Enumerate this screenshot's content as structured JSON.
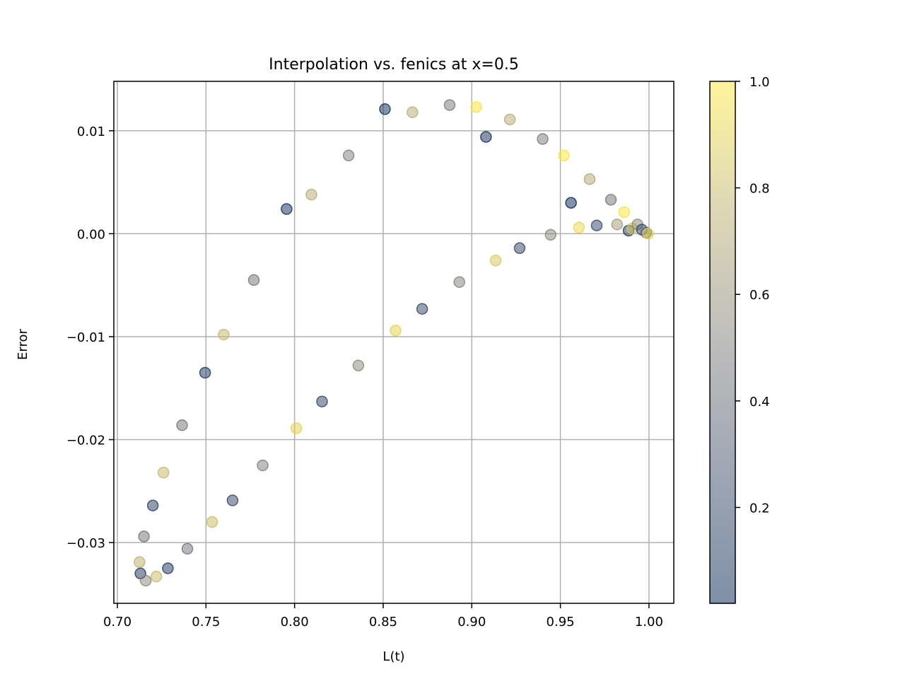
{
  "chart_data": {
    "type": "scatter",
    "title": "Interpolation vs. fenics at x=0.5",
    "xlabel": "L(t)",
    "ylabel": "Error",
    "xlim": [
      0.698,
      1.014
    ],
    "ylim": [
      -0.0359,
      0.0148
    ],
    "xticks": [
      0.7,
      0.75,
      0.8,
      0.85,
      0.9,
      0.95,
      1.0
    ],
    "xtick_labels": [
      "0.70",
      "0.75",
      "0.80",
      "0.85",
      "0.90",
      "0.95",
      "1.00"
    ],
    "yticks": [
      -0.03,
      -0.02,
      -0.01,
      0.0,
      0.01
    ],
    "ytick_labels": [
      "−0.03",
      "−0.02",
      "−0.01",
      "0.00",
      "0.01"
    ],
    "grid": true,
    "colormap": "cividis",
    "marker_alpha": 0.5,
    "colorbar": {
      "range": [
        0.02,
        1.0
      ],
      "ticks": [
        0.2,
        0.4,
        0.6,
        0.8,
        1.0
      ],
      "tick_labels": [
        "0.2",
        "0.4",
        "0.6",
        "0.8",
        "1.0"
      ]
    },
    "points": [
      {
        "x": 0.713,
        "y": -0.033,
        "c": 0.1
      },
      {
        "x": 0.7125,
        "y": -0.0319,
        "c": 0.75
      },
      {
        "x": 0.716,
        "y": -0.0337,
        "c": 0.55
      },
      {
        "x": 0.715,
        "y": -0.0294,
        "c": 0.45
      },
      {
        "x": 0.722,
        "y": -0.0333,
        "c": 0.8
      },
      {
        "x": 0.72,
        "y": -0.0264,
        "c": 0.15
      },
      {
        "x": 0.7285,
        "y": -0.0325,
        "c": 0.12
      },
      {
        "x": 0.726,
        "y": -0.0232,
        "c": 0.78
      },
      {
        "x": 0.7395,
        "y": -0.0306,
        "c": 0.45
      },
      {
        "x": 0.7365,
        "y": -0.0186,
        "c": 0.45
      },
      {
        "x": 0.7535,
        "y": -0.028,
        "c": 0.8
      },
      {
        "x": 0.7495,
        "y": -0.0135,
        "c": 0.1
      },
      {
        "x": 0.765,
        "y": -0.0259,
        "c": 0.18
      },
      {
        "x": 0.76,
        "y": -0.0098,
        "c": 0.78
      },
      {
        "x": 0.782,
        "y": -0.0225,
        "c": 0.5
      },
      {
        "x": 0.777,
        "y": -0.0045,
        "c": 0.45
      },
      {
        "x": 0.801,
        "y": -0.0189,
        "c": 0.9
      },
      {
        "x": 0.7955,
        "y": 0.0024,
        "c": 0.05
      },
      {
        "x": 0.8155,
        "y": -0.0163,
        "c": 0.18
      },
      {
        "x": 0.8095,
        "y": 0.0038,
        "c": 0.72
      },
      {
        "x": 0.836,
        "y": -0.0128,
        "c": 0.55
      },
      {
        "x": 0.8305,
        "y": 0.0076,
        "c": 0.5
      },
      {
        "x": 0.857,
        "y": -0.0094,
        "c": 0.9
      },
      {
        "x": 0.851,
        "y": 0.0121,
        "c": 0.05
      },
      {
        "x": 0.872,
        "y": -0.0073,
        "c": 0.2
      },
      {
        "x": 0.8665,
        "y": 0.0118,
        "c": 0.72
      },
      {
        "x": 0.893,
        "y": -0.0047,
        "c": 0.52
      },
      {
        "x": 0.8875,
        "y": 0.0125,
        "c": 0.48
      },
      {
        "x": 0.9135,
        "y": -0.0026,
        "c": 0.85
      },
      {
        "x": 0.9025,
        "y": 0.0123,
        "c": 0.98
      },
      {
        "x": 0.927,
        "y": -0.0014,
        "c": 0.2
      },
      {
        "x": 0.908,
        "y": 0.0094,
        "c": 0.05
      },
      {
        "x": 0.9445,
        "y": -0.0001,
        "c": 0.55
      },
      {
        "x": 0.9215,
        "y": 0.0111,
        "c": 0.72
      },
      {
        "x": 0.9605,
        "y": 0.0006,
        "c": 0.92
      },
      {
        "x": 0.94,
        "y": 0.0092,
        "c": 0.48
      },
      {
        "x": 0.9705,
        "y": 0.0008,
        "c": 0.2
      },
      {
        "x": 0.952,
        "y": 0.0076,
        "c": 0.98
      },
      {
        "x": 0.982,
        "y": 0.0009,
        "c": 0.65
      },
      {
        "x": 0.956,
        "y": 0.003,
        "c": 0.02
      },
      {
        "x": 0.9885,
        "y": 0.0003,
        "c": 0.1
      },
      {
        "x": 0.9665,
        "y": 0.0053,
        "c": 0.7
      },
      {
        "x": 0.9905,
        "y": 0.0005,
        "c": 0.85
      },
      {
        "x": 0.9785,
        "y": 0.0033,
        "c": 0.45
      },
      {
        "x": 0.9935,
        "y": 0.0009,
        "c": 0.55
      },
      {
        "x": 0.986,
        "y": 0.0021,
        "c": 0.98
      },
      {
        "x": 0.996,
        "y": 0.0004,
        "c": 0.2
      },
      {
        "x": 0.9985,
        "y": 0.0001,
        "c": 0.35
      },
      {
        "x": 0.9995,
        "y": 0.0,
        "c": 0.9
      }
    ]
  }
}
